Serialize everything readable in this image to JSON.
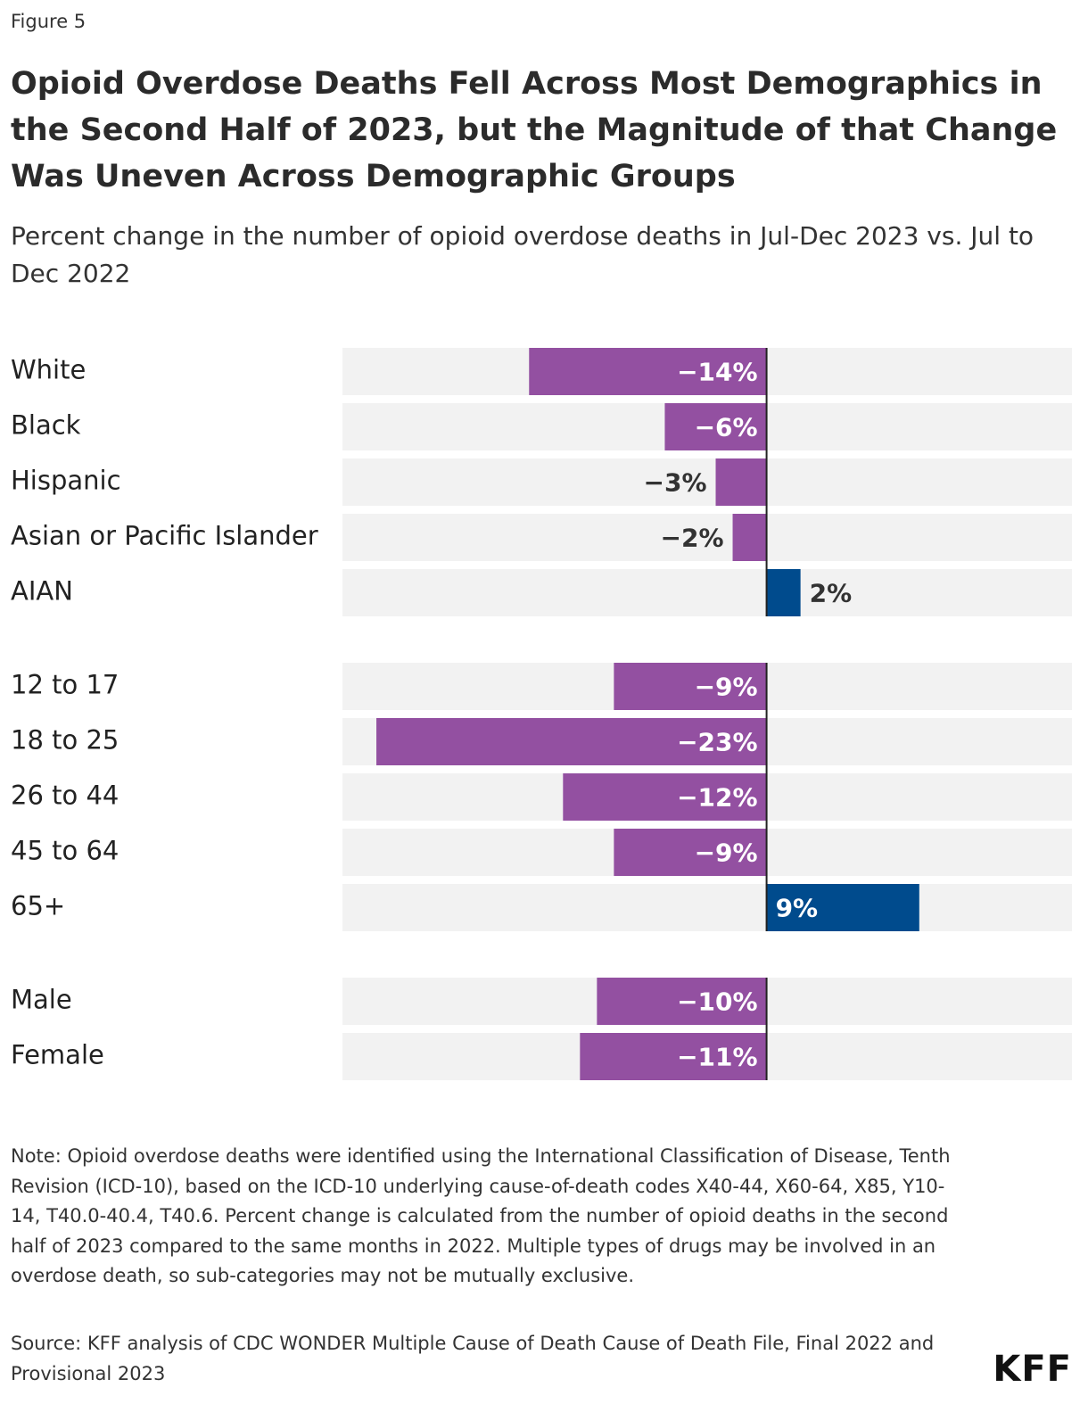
{
  "figure_label": "Figure 5",
  "chart_data": {
    "type": "bar",
    "orientation": "horizontal",
    "title": "Opioid Overdose Deaths Fell Across Most Demographics in the Second Half of 2023, but the Magnitude of that Change Was Uneven Across Demographic Groups",
    "subtitle": "Percent change in the number of opioid overdose deaths in Jul-Dec 2023 vs. Jul to Dec 2022",
    "groups": [
      {
        "categories": [
          "White",
          "Black",
          "Hispanic",
          "Asian or Pacific Islander",
          "AIAN"
        ],
        "values": [
          -14,
          -6,
          -3,
          -2,
          2
        ],
        "value_labels": [
          "−14%",
          "−6%",
          "−3%",
          "−2%",
          "2%"
        ]
      },
      {
        "categories": [
          "12 to 17",
          "18 to 25",
          "26 to 44",
          "45 to 64",
          "65+"
        ],
        "values": [
          -9,
          -23,
          -12,
          -9,
          9
        ],
        "value_labels": [
          "−9%",
          "−23%",
          "−12%",
          "−9%",
          "9%"
        ]
      },
      {
        "categories": [
          "Male",
          "Female"
        ],
        "values": [
          -10,
          -11
        ],
        "value_labels": [
          "−10%",
          "−11%"
        ]
      }
    ],
    "xlim": [
      -25,
      18
    ],
    "colors": {
      "negative": "#9350a1",
      "positive": "#004b8d"
    }
  },
  "note": "Note: Opioid overdose deaths were identified using the International Classification of Disease, Tenth Revision (ICD-10), based on the ICD-10 underlying cause-of-death codes X40-44, X60-64, X85, Y10-14, T40.0-40.4, T40.6. Percent change is calculated from the number of opioid deaths in the second half of 2023 compared to the same months in 2022. Multiple types of drugs may be involved in an overdose death, so sub-categories may not be mutually exclusive.",
  "source": "Source: KFF analysis of CDC WONDER Multiple Cause of Death Cause of Death File, Final 2022 and Provisional 2023",
  "logo": "KFF"
}
